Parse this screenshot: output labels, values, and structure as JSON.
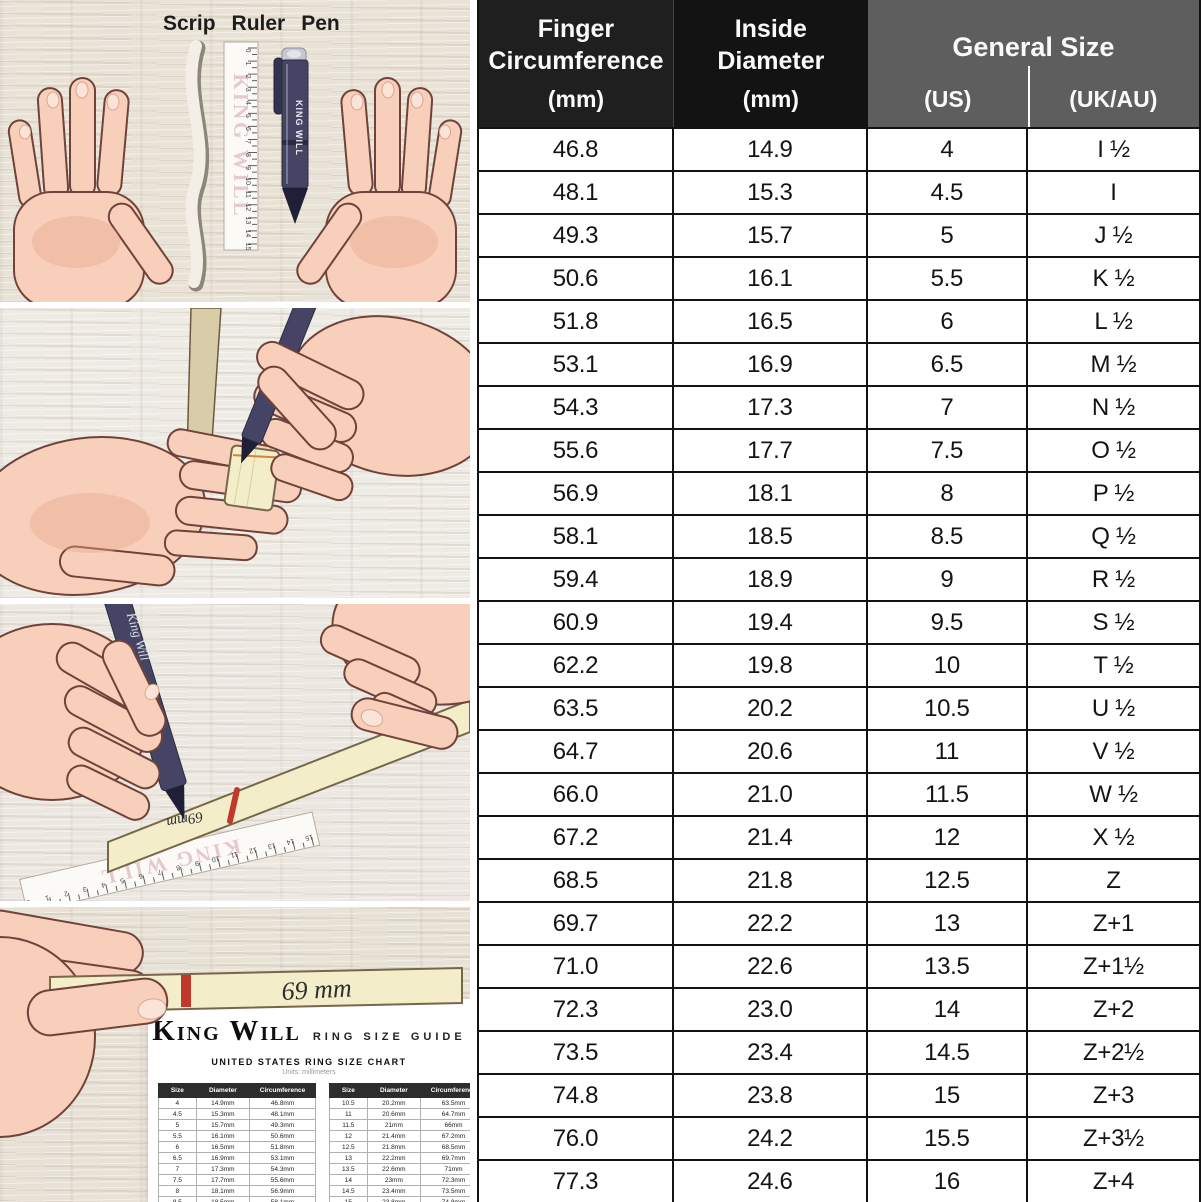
{
  "colors": {
    "header_black": "#1c1c1c",
    "header_gray": "#5e5e5e",
    "table_border": "#131313",
    "wood": "#e9e2d6",
    "strip_cream": "#f4edc9",
    "pen_navy": "#454464",
    "mark_red": "#c0392b",
    "skin": "#f7cfbb"
  },
  "ruler": {
    "brand": "KING WILL",
    "numbers": [
      "0",
      "1",
      "2",
      "3",
      "4",
      "5",
      "6",
      "7",
      "8",
      "9",
      "10",
      "11",
      "12",
      "13",
      "14",
      "15"
    ]
  },
  "panels": {
    "tools": {
      "labels": [
        "Scrip",
        "Ruler",
        "Pen"
      ],
      "pen_brand": "KING WILL"
    },
    "mark": {
      "pen_brand": "King Will",
      "strip_text": "69mm"
    },
    "result": {
      "strip_text": "69 mm",
      "card": {
        "brand": "King Will",
        "title": "RING SIZE GUIDE",
        "subtitle": "UNITED STATES RING SIZE CHART",
        "units": "Units: millimeters",
        "headers": [
          "Size",
          "Diameter",
          "Circumference"
        ],
        "left_rows": [
          [
            "4",
            "14.9mm",
            "46.8mm"
          ],
          [
            "4.5",
            "15.3mm",
            "48.1mm"
          ],
          [
            "5",
            "15.7mm",
            "49.3mm"
          ],
          [
            "5.5",
            "16.1mm",
            "50.6mm"
          ],
          [
            "6",
            "16.5mm",
            "51.8mm"
          ],
          [
            "6.5",
            "16.9mm",
            "53.1mm"
          ],
          [
            "7",
            "17.3mm",
            "54.3mm"
          ],
          [
            "7.5",
            "17.7mm",
            "55.6mm"
          ],
          [
            "8",
            "18.1mm",
            "56.9mm"
          ],
          [
            "8.5",
            "18.5mm",
            "58.1mm"
          ]
        ],
        "right_rows": [
          [
            "10.5",
            "20.2mm",
            "63.5mm"
          ],
          [
            "11",
            "20.6mm",
            "64.7mm"
          ],
          [
            "11.5",
            "21mm",
            "66mm"
          ],
          [
            "12",
            "21.4mm",
            "67.2mm"
          ],
          [
            "12.5",
            "21.8mm",
            "68.5mm"
          ],
          [
            "13",
            "22.2mm",
            "69.7mm"
          ],
          [
            "13.5",
            "22.6mm",
            "71mm"
          ],
          [
            "14",
            "23mm",
            "72.3mm"
          ],
          [
            "14.5",
            "23.4mm",
            "73.5mm"
          ],
          [
            "15",
            "23.8mm",
            "74.8mm"
          ]
        ]
      }
    }
  },
  "table": {
    "header": {
      "col1": "Finger Circumference",
      "col1_unit": "(mm)",
      "col2": "Inside Diameter",
      "col2_unit": "(mm)",
      "group": "General Size",
      "us": "(US)",
      "uk": "(UK/AU)"
    }
  },
  "chart_data": {
    "type": "table",
    "columns": [
      "Finger Circumference (mm)",
      "Inside Diameter (mm)",
      "General Size (US)",
      "General Size (UK/AU)"
    ],
    "rows": [
      [
        "46.8",
        "14.9",
        "4",
        "I ½"
      ],
      [
        "48.1",
        "15.3",
        "4.5",
        "I"
      ],
      [
        "49.3",
        "15.7",
        "5",
        "J ½"
      ],
      [
        "50.6",
        "16.1",
        "5.5",
        "K ½"
      ],
      [
        "51.8",
        "16.5",
        "6",
        "L ½"
      ],
      [
        "53.1",
        "16.9",
        "6.5",
        "M ½"
      ],
      [
        "54.3",
        "17.3",
        "7",
        "N ½"
      ],
      [
        "55.6",
        "17.7",
        "7.5",
        "O ½"
      ],
      [
        "56.9",
        "18.1",
        "8",
        "P ½"
      ],
      [
        "58.1",
        "18.5",
        "8.5",
        "Q ½"
      ],
      [
        "59.4",
        "18.9",
        "9",
        "R ½"
      ],
      [
        "60.9",
        "19.4",
        "9.5",
        "S ½"
      ],
      [
        "62.2",
        "19.8",
        "10",
        "T ½"
      ],
      [
        "63.5",
        "20.2",
        "10.5",
        "U ½"
      ],
      [
        "64.7",
        "20.6",
        "11",
        "V ½"
      ],
      [
        "66.0",
        "21.0",
        "11.5",
        "W ½"
      ],
      [
        "67.2",
        "21.4",
        "12",
        "X ½"
      ],
      [
        "68.5",
        "21.8",
        "12.5",
        "Z"
      ],
      [
        "69.7",
        "22.2",
        "13",
        "Z+1"
      ],
      [
        "71.0",
        "22.6",
        "13.5",
        "Z+1½"
      ],
      [
        "72.3",
        "23.0",
        "14",
        "Z+2"
      ],
      [
        "73.5",
        "23.4",
        "14.5",
        "Z+2½"
      ],
      [
        "74.8",
        "23.8",
        "15",
        "Z+3"
      ],
      [
        "76.0",
        "24.2",
        "15.5",
        "Z+3½"
      ],
      [
        "77.3",
        "24.6",
        "16",
        "Z+4"
      ]
    ]
  }
}
